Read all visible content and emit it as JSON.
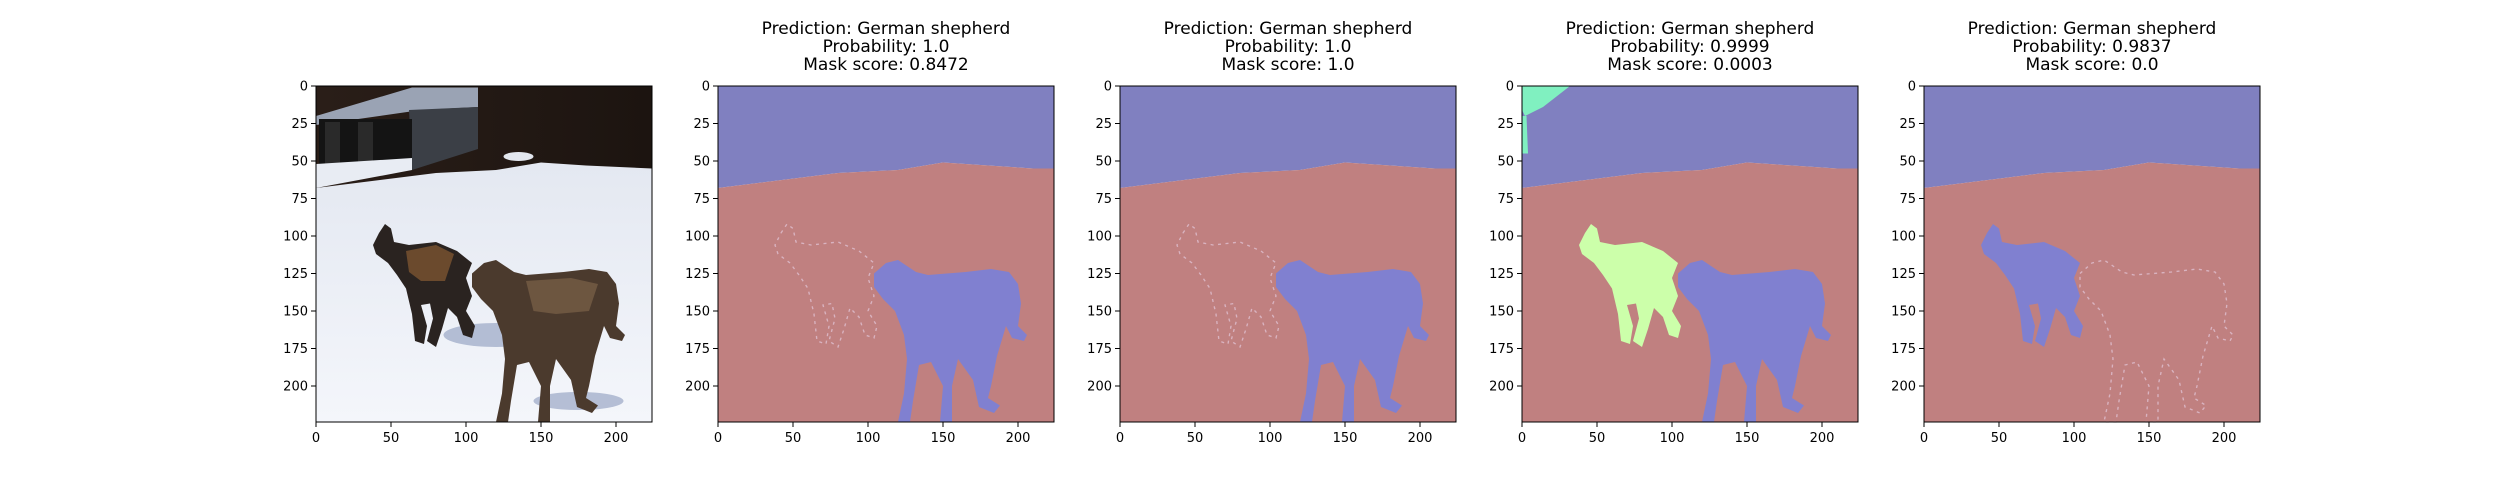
{
  "panels": [
    {
      "kind": "photo",
      "title": [],
      "x_ticks": [
        "0",
        "50",
        "100",
        "150",
        "200"
      ],
      "y_ticks": [
        "0",
        "25",
        "50",
        "75",
        "100",
        "125",
        "150",
        "175",
        "200"
      ]
    },
    {
      "kind": "mask",
      "variant": "a",
      "title": [
        "Prediction: German shepherd",
        "Probability: 1.0",
        "Mask score: 0.8472"
      ],
      "x_ticks": [
        "0",
        "50",
        "100",
        "150",
        "200"
      ],
      "y_ticks": [
        "0",
        "25",
        "50",
        "75",
        "100",
        "125",
        "150",
        "175",
        "200"
      ]
    },
    {
      "kind": "mask",
      "variant": "b",
      "title": [
        "Prediction: German shepherd",
        "Probability: 1.0",
        "Mask score: 1.0"
      ],
      "x_ticks": [
        "0",
        "50",
        "100",
        "150",
        "200"
      ],
      "y_ticks": [
        "0",
        "25",
        "50",
        "75",
        "100",
        "125",
        "150",
        "175",
        "200"
      ]
    },
    {
      "kind": "mask",
      "variant": "c",
      "title": [
        "Prediction: German shepherd",
        "Probability: 0.9999",
        "Mask score: 0.0003"
      ],
      "x_ticks": [
        "0",
        "50",
        "100",
        "150",
        "200"
      ],
      "y_ticks": [
        "0",
        "25",
        "50",
        "75",
        "100",
        "125",
        "150",
        "175",
        "200"
      ]
    },
    {
      "kind": "mask",
      "variant": "d",
      "title": [
        "Prediction: German shepherd",
        "Probability: 0.9837",
        "Mask score: 0.0"
      ],
      "x_ticks": [
        "0",
        "50",
        "100",
        "150",
        "200"
      ],
      "y_ticks": [
        "0",
        "25",
        "50",
        "75",
        "100",
        "125",
        "150",
        "175",
        "200"
      ]
    }
  ],
  "colors": {
    "sky": "#8080c0",
    "ground": "#c08080",
    "dog": "#8080d0",
    "shepherd_highlight": "#ccffaa",
    "corner_highlight": "#80f0c0",
    "snow": "#eef1f7",
    "forest": "#241a14"
  }
}
